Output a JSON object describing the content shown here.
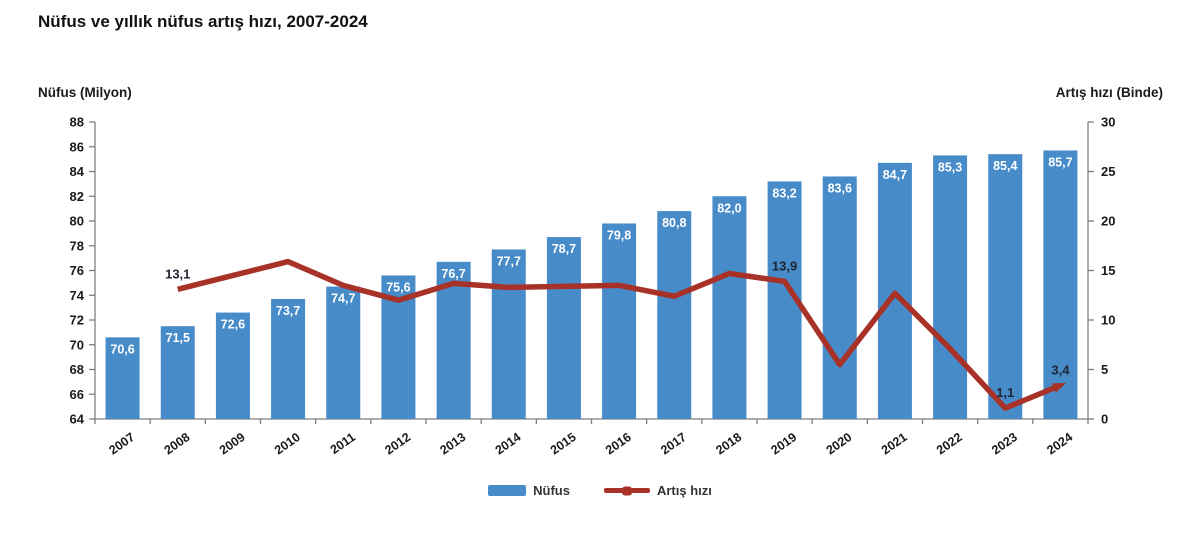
{
  "title": "Nüfus ve yıllık nüfus artış hızı, 2007-2024",
  "legend": {
    "bar_label": "Nüfus",
    "line_label": "Artış hızı"
  },
  "colors": {
    "bar": "#478bc9",
    "line": "#a93228",
    "bar_value_text": "#ffffff",
    "line_value_text": "#1f2433",
    "axis": "#7f7f7f",
    "tick_text": "#1a1a1a"
  },
  "chart_data": {
    "type": "combo-bar-line",
    "title": "Nüfus ve yıllık nüfus artış hızı, 2007-2024",
    "categories": [
      "2007",
      "2008",
      "2009",
      "2010",
      "2011",
      "2012",
      "2013",
      "2014",
      "2015",
      "2016",
      "2017",
      "2018",
      "2019",
      "2020",
      "2021",
      "2022",
      "2023",
      "2024"
    ],
    "left_axis": {
      "title": "Nüfus (Milyon)",
      "min": 64,
      "max": 88,
      "step": 2
    },
    "right_axis": {
      "title": "Artış hızı (Binde)",
      "min": 0,
      "max": 30,
      "step": 5
    },
    "legend_position": "bottom",
    "grid": "off",
    "series": [
      {
        "name": "Nüfus",
        "type": "bar",
        "axis": "left",
        "values": [
          70.6,
          71.5,
          72.6,
          73.7,
          74.7,
          75.6,
          76.7,
          77.7,
          78.7,
          79.8,
          80.8,
          82.0,
          83.2,
          83.6,
          84.7,
          85.3,
          85.4,
          85.7
        ],
        "value_labels": [
          "70,6",
          "71,5",
          "72,6",
          "73,7",
          "74,7",
          "75,6",
          "76,7",
          "77,7",
          "78,7",
          "79,8",
          "80,8",
          "82,0",
          "83,2",
          "83,6",
          "84,7",
          "85,3",
          "85,4",
          "85,7"
        ]
      },
      {
        "name": "Artış hızı",
        "type": "line",
        "axis": "right",
        "values": [
          null,
          13.1,
          14.5,
          15.9,
          13.5,
          12.0,
          13.7,
          13.3,
          13.4,
          13.5,
          12.4,
          14.7,
          13.9,
          5.5,
          12.7,
          7.1,
          1.1,
          3.4
        ],
        "point_labels": [
          "",
          "13,1",
          "",
          "",
          "",
          "",
          "",
          "",
          "",
          "",
          "",
          "",
          "13,9",
          "",
          "",
          "",
          "1,1",
          "3,4"
        ],
        "end_arrow": true
      }
    ]
  }
}
